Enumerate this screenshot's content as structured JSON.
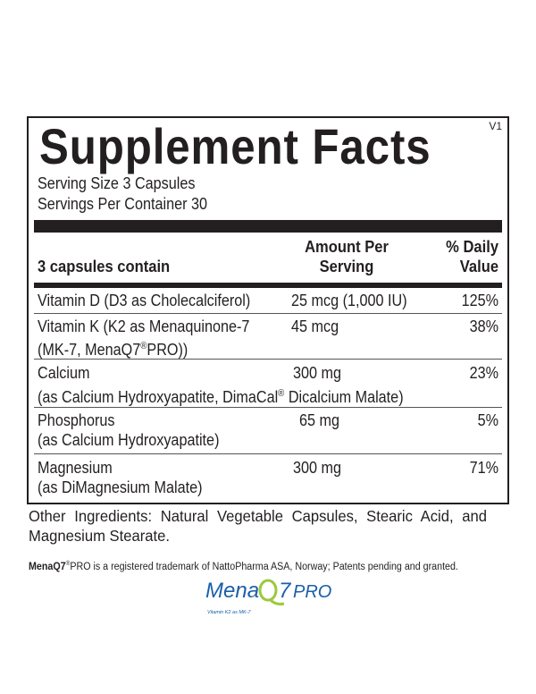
{
  "label": {
    "title": "Supplement Facts",
    "version": "V1",
    "serving_size": "Serving Size 3 Capsules",
    "servings_per_container": "Servings Per Container 30",
    "header": {
      "col1": "3 capsules contain",
      "col2_line1": "Amount Per",
      "col2_line2": "Serving",
      "col3_line1": "% Daily",
      "col3_line2": "Value"
    },
    "rows": [
      {
        "name": "Vitamin D (D3 as Cholecalciferol)",
        "amount": "25 mcg (1,000 IU)",
        "dv": "125%"
      },
      {
        "name": "Vitamin K (K2 as Menaquinone-7",
        "name2": "(MK-7, MenaQ7",
        "reg": "®",
        "name2b": "PRO))",
        "amount": "45 mcg",
        "dv": "38%"
      },
      {
        "name": "Calcium",
        "name2": "(as Calcium Hydroxyapatite, DimaCal",
        "reg": "®",
        "name2b": " Dicalcium Malate)",
        "amount": "300 mg",
        "dv": "23%"
      },
      {
        "name": "Phosphorus",
        "name2": "(as Calcium Hydroxyapatite)",
        "amount": "65 mg",
        "dv": "5%"
      },
      {
        "name": "Magnesium",
        "name2": "(as DiMagnesium Malate)",
        "amount": "300 mg",
        "dv": "71%"
      }
    ]
  },
  "other_ingredients": "Other Ingredients: Natural Vegetable Capsules, Stearic Acid, and Magnesium Stearate.",
  "footnote": {
    "brand": "MenaQ7",
    "reg": "®",
    "text": "PRO is a registered trademark of NattoPharma ASA, Norway; Patents pending and granted."
  },
  "logo": {
    "text1": "Mena",
    "text2": "7",
    "text3": "PRO",
    "tagline": "Vitamin K2 as MK-7",
    "blue": "#1a5fa8",
    "green": "#9cc93b"
  }
}
